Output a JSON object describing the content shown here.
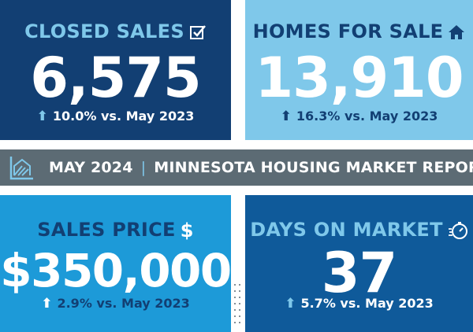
{
  "tiles": {
    "closed_sales": {
      "label": "CLOSED SALES",
      "value": "6,575",
      "change": "10.0% vs. May 2023",
      "icon": "checkbox-icon"
    },
    "homes_for_sale": {
      "label": "HOMES FOR SALE",
      "value": "13,910",
      "change": "16.3% vs. May 2023",
      "icon": "house-icon"
    },
    "sales_price": {
      "label": "SALES PRICE",
      "value": "$350,000",
      "change": "2.9% vs. May 2023",
      "icon": "dollar-icon"
    },
    "days_on_market": {
      "label": "DAYS ON MARKET",
      "value": "37",
      "change": "5.7% vs. May 2023",
      "icon": "stopwatch-icon"
    }
  },
  "banner": {
    "date": "MAY 2024",
    "title": "MINNESOTA HOUSING MARKET REPORT"
  },
  "colors": {
    "navy": "#123f73",
    "light_blue": "#7fc8ea",
    "bright_blue": "#1d9ad8",
    "mid_blue": "#0f5a9a",
    "banner_gray": "#5c6b74"
  }
}
